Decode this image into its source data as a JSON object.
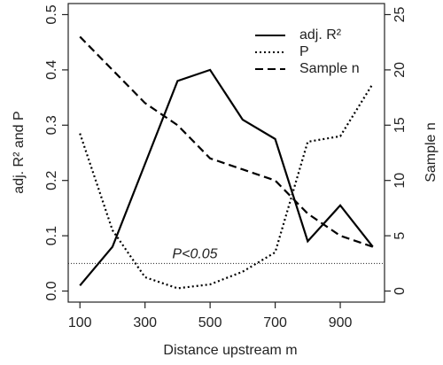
{
  "chart_data": {
    "type": "line",
    "xlabel": "Distance upstream m",
    "ylabel": "adj. R² and P",
    "y2label": "Sample n",
    "x": [
      100,
      200,
      300,
      400,
      500,
      600,
      700,
      800,
      900,
      1000
    ],
    "series": [
      {
        "name": "adj. R²",
        "color": "#000000",
        "dash": "solid",
        "values": [
          0.01,
          0.08,
          0.23,
          0.38,
          0.4,
          0.31,
          0.275,
          0.09,
          0.155,
          0.08
        ]
      },
      {
        "name": "P",
        "color": "#000000",
        "dash": "dotted",
        "values": [
          0.285,
          0.11,
          0.025,
          0.005,
          0.012,
          0.035,
          0.07,
          0.27,
          0.28,
          0.375
        ]
      },
      {
        "name": "Sample n",
        "color": "#000000",
        "dash": "dashed",
        "axis": "y2",
        "values": [
          23,
          20,
          17,
          15,
          12,
          11,
          10,
          7,
          5,
          4
        ]
      }
    ],
    "xlim": [
      64,
      1036
    ],
    "xticks": [
      100,
      300,
      500,
      700,
      900
    ],
    "ylim": [
      -0.02,
      0.52
    ],
    "yticks": [
      {
        "value": 0,
        "label": "0.0"
      },
      0.1,
      0.2,
      0.3,
      0.4,
      0.5
    ],
    "y2lim": [
      -1,
      26
    ],
    "y2ticks": [
      0,
      5,
      10,
      15,
      20,
      25
    ],
    "annotations": [
      {
        "text": "P<0.05",
        "value": 0.05
      }
    ],
    "legend": "top-right"
  }
}
